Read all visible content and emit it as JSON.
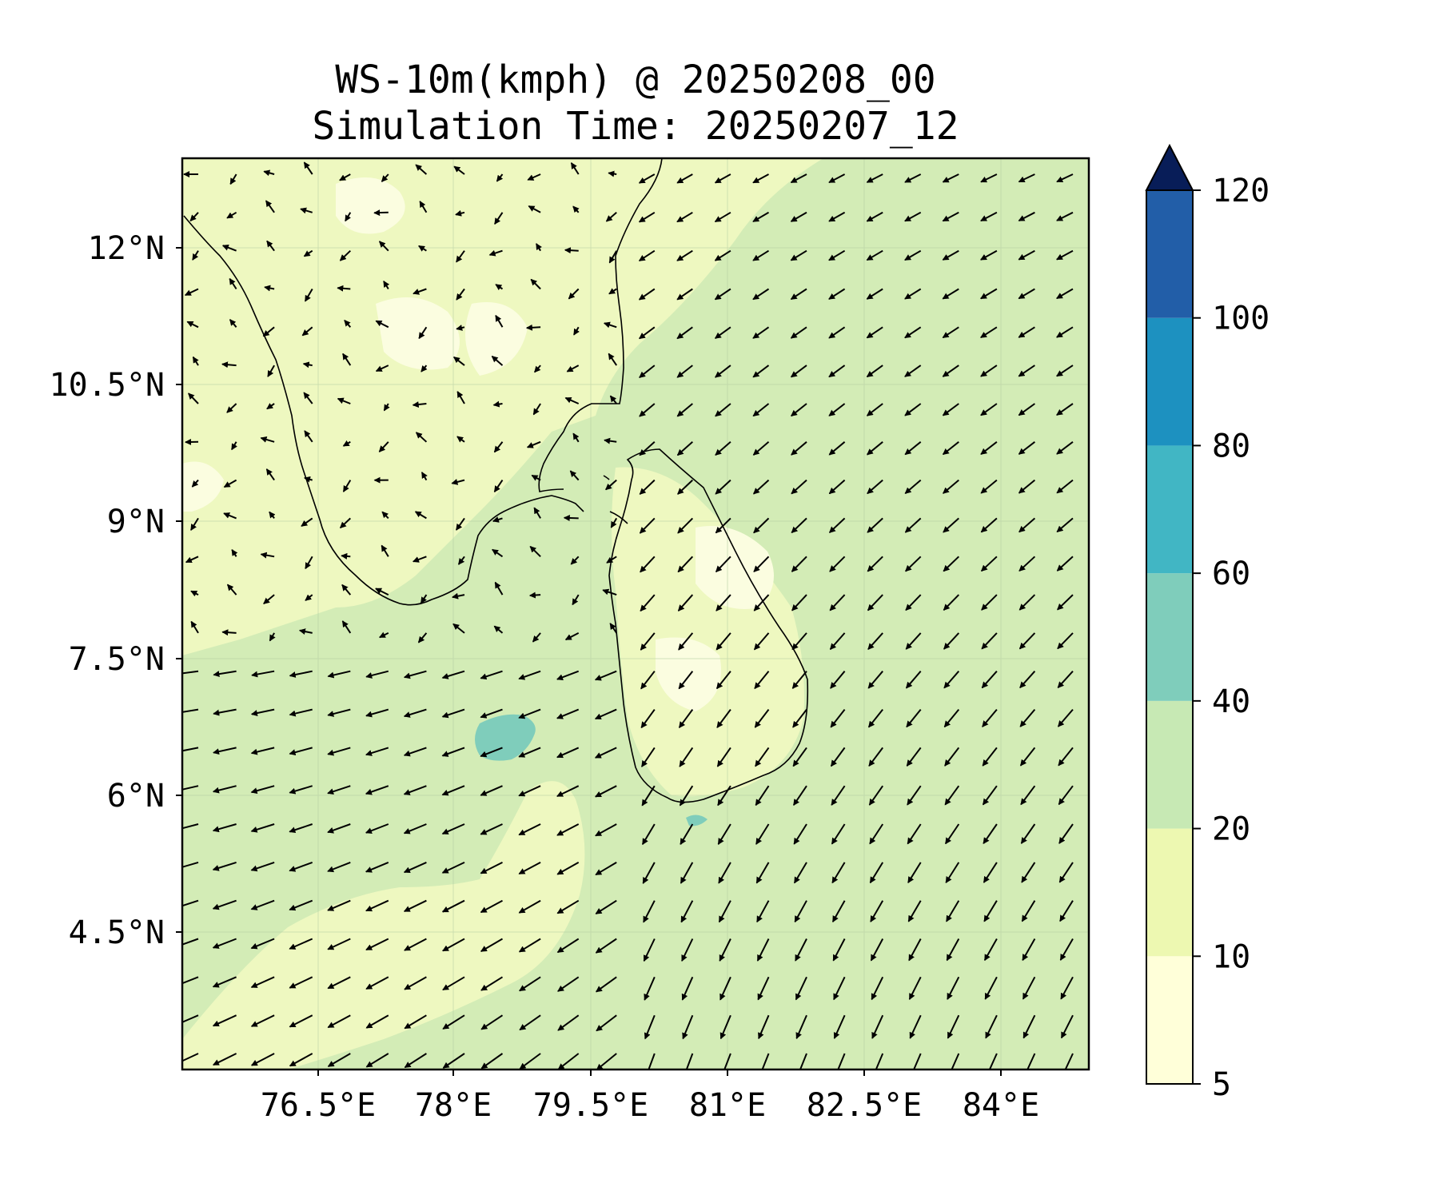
{
  "title": {
    "line1": "WS-10m(kmph) @ 20250208_00",
    "line2": "Simulation Time: 20250207_12"
  },
  "map": {
    "region": "Southern India and Sri Lanka",
    "lon_range": [
      75.0,
      84.9
    ],
    "lat_range": [
      2.9,
      12.9
    ],
    "lat_ticks": [
      "12°N",
      "10.5°N",
      "9°N",
      "7.5°N",
      "6°N",
      "4.5°N"
    ],
    "lon_ticks": [
      "76.5°E",
      "78°E",
      "79.5°E",
      "81°E",
      "82.5°E",
      "84°E"
    ],
    "gridlines": true,
    "field": "10 m wind speed (filled contours) with wind direction vectors",
    "dominant_wind": "northeasterly"
  },
  "colorbar": {
    "levels": [
      "5",
      "10",
      "20",
      "40",
      "60",
      "80",
      "100",
      "120"
    ],
    "colors": [
      "#ffffd9",
      "#edf8b1",
      "#c7e9b4",
      "#7fcdbb",
      "#41b6c4",
      "#1d91c0",
      "#225ea8",
      "#0c2c84"
    ],
    "extend": "max",
    "extend_color": "#081d58"
  }
}
